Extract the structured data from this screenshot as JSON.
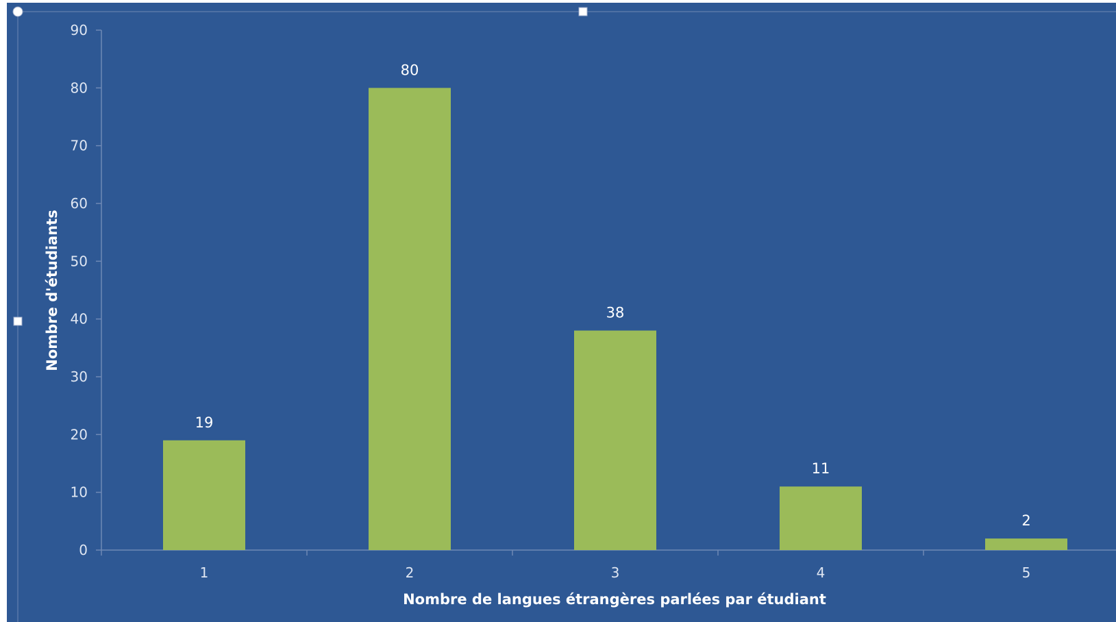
{
  "colors": {
    "plot_background": "#2e5894",
    "bar_fill": "#9bbb59",
    "axis_line": "#6f89b5",
    "text": "#ffffff",
    "selection_handle": "#ffffff"
  },
  "chart_data": {
    "type": "bar",
    "categories": [
      "1",
      "2",
      "3",
      "4",
      "5"
    ],
    "values": [
      19,
      80,
      38,
      11,
      2
    ],
    "data_labels": [
      "19",
      "80",
      "38",
      "11",
      "2"
    ],
    "title": "",
    "xlabel": "Nombre de langues étrangères parlées par étudiant",
    "ylabel": "Nombre d'étudiants",
    "ylim": [
      0,
      90
    ],
    "yticks": [
      0,
      10,
      20,
      30,
      40,
      50,
      60,
      70,
      80,
      90
    ],
    "grid": false,
    "legend": "none"
  }
}
